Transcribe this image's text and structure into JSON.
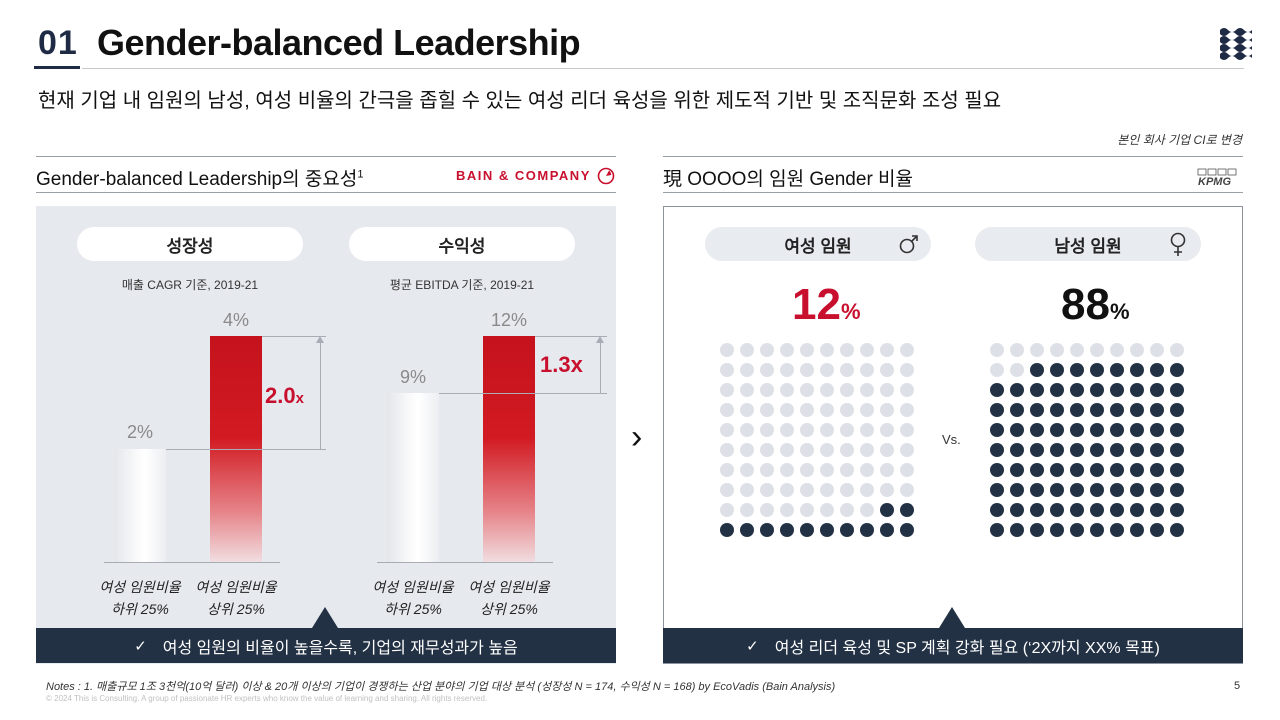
{
  "header": {
    "number": "01",
    "title": "Gender-balanced Leadership",
    "subtitle": "현재 기업 내 임원의 남성, 여성 비율의 간극을 좁힐 수 있는 여성 리더 육성을 위한 제도적 기반 및 조직문화 조성 필요",
    "note_right": "본인 회사 기업 CI로 변경"
  },
  "left": {
    "title": "Gender-balanced  Leadership의 중요성",
    "title_sup": "1",
    "brand": "BAIN & COMPANY",
    "growth": {
      "pill": "성장성",
      "sub": "매출 CAGR 기준, 2019-21",
      "low_value": "2%",
      "high_value": "4%",
      "multiplier": "2.0",
      "multiplier_unit": "x",
      "low_label_1": "여성 임원비율",
      "low_label_2": "하위 25%",
      "high_label_1": "여성 임원비율",
      "high_label_2": "상위 25%"
    },
    "profit": {
      "pill": "수익성",
      "sub": "평균 EBITDA 기준, 2019-21",
      "low_value": "9%",
      "high_value": "12%",
      "multiplier": "1.3x",
      "low_label_1": "여성 임원비율",
      "low_label_2": "하위 25%",
      "high_label_1": "여성 임원비율",
      "high_label_2": "상위 25%"
    },
    "banner_check": "✓",
    "banner": "여성 임원의 비율이 높을수록, 기업의 재무성과가 높음"
  },
  "right": {
    "title": "現 OOOO의 임원 Gender 비율",
    "brand": "KPMG",
    "female": {
      "pill": "여성 임원",
      "value": "12",
      "unit": "%",
      "share": 12
    },
    "male": {
      "pill": "남성 임원",
      "value": "88",
      "unit": "%",
      "share": 88
    },
    "vs": "Vs.",
    "banner_check": "✓",
    "banner": "여성 리더 육성 및 SP 계획 강화 필요 (‘2X까지 XX% 목표)"
  },
  "footer": {
    "notes": "Notes : 1. 매출규모 1조 3천억(10억 달러) 이상 & 20개 이상의 기업이 경쟁하는 산업 분야의 기업 대상 분석 (성장성 N = 174, 수익성 N = 168) by EcoVadis (Bain Analysis)",
    "copyright": "© 2024 This is Consulting. A group of passionate HR experts who know the value of learning and sharing. All rights reserved.",
    "page": "5"
  },
  "colors": {
    "navy": "#233145",
    "red": "#c8102e",
    "dot_off": "#dde1e7"
  }
}
